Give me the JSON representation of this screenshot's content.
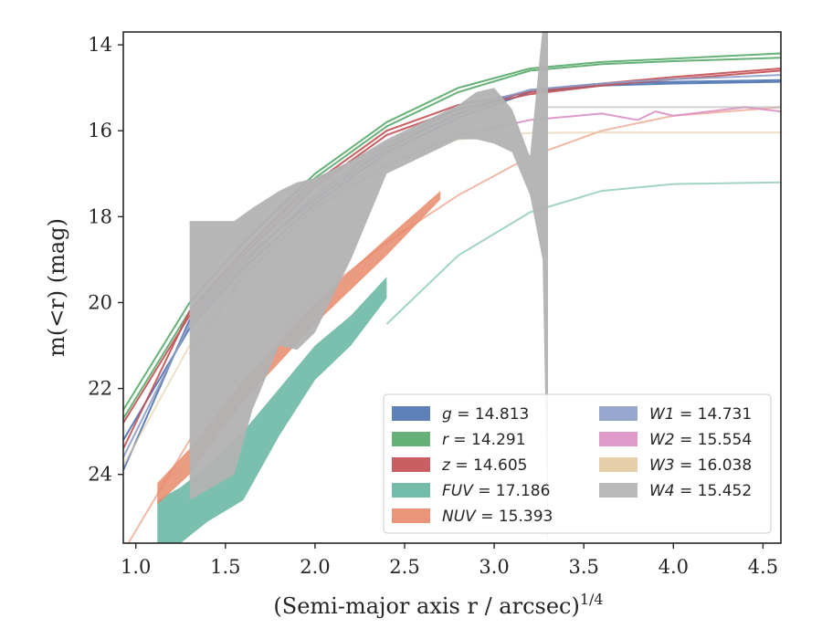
{
  "chart_data": {
    "type": "line",
    "xlabel": "(Semi-major axis r / arcsec)",
    "xlabel_sup": "1/4",
    "ylabel": "m(<r) (mag)",
    "xlim": [
      0.93,
      4.6
    ],
    "ylim": [
      25.6,
      13.7
    ],
    "y_inverted": true,
    "x_ticks": [
      1.0,
      1.5,
      2.0,
      2.5,
      3.0,
      3.5,
      4.0,
      4.5
    ],
    "x_tick_labels": [
      "1.0",
      "1.5",
      "2.0",
      "2.5",
      "3.0",
      "3.5",
      "4.0",
      "4.5"
    ],
    "y_ticks": [
      14,
      16,
      18,
      20,
      22,
      24
    ],
    "y_tick_labels": [
      "14",
      "16",
      "18",
      "20",
      "22",
      "24"
    ],
    "grid": false,
    "legend_position": "lower-right",
    "series": [
      {
        "name": "g",
        "legend_value": "14.813",
        "color": "#4c72b0",
        "band": false,
        "profiles": [
          {
            "x": [
              0.93,
              1.3,
              1.6,
              2.0,
              2.4,
              2.8,
              3.2,
              3.6,
              4.0,
              4.6
            ],
            "y": [
              23.9,
              20.4,
              19.0,
              17.6,
              16.4,
              15.6,
              15.05,
              14.9,
              14.86,
              14.82
            ]
          },
          {
            "x": [
              0.93,
              1.3,
              1.6,
              2.0,
              2.4,
              2.8,
              3.2,
              3.6,
              4.0,
              4.6
            ],
            "y": [
              23.2,
              20.6,
              19.2,
              17.7,
              16.5,
              15.7,
              15.1,
              14.95,
              14.9,
              14.86
            ]
          }
        ]
      },
      {
        "name": "r",
        "legend_value": "14.291",
        "color": "#55a868",
        "band": false,
        "profiles": [
          {
            "x": [
              0.93,
              1.3,
              1.6,
              2.0,
              2.4,
              2.8,
              3.2,
              3.6,
              4.0,
              4.6
            ],
            "y": [
              22.5,
              20.0,
              18.6,
              17.0,
              15.8,
              15.0,
              14.55,
              14.4,
              14.32,
              14.2
            ]
          },
          {
            "x": [
              0.93,
              1.3,
              1.6,
              2.0,
              2.4,
              2.8,
              3.2,
              3.6,
              4.0,
              4.6
            ],
            "y": [
              22.7,
              20.2,
              18.8,
              17.1,
              15.9,
              15.1,
              14.6,
              14.45,
              14.38,
              14.3
            ]
          }
        ]
      },
      {
        "name": "z",
        "legend_value": "14.605",
        "color": "#c44e52",
        "band": false,
        "profiles": [
          {
            "x": [
              0.93,
              1.3,
              1.6,
              2.0,
              2.4,
              2.8,
              3.2,
              3.6,
              4.0,
              4.6
            ],
            "y": [
              23.4,
              20.2,
              18.8,
              17.2,
              16.0,
              15.4,
              15.1,
              14.9,
              14.75,
              14.55
            ]
          },
          {
            "x": [
              0.93,
              1.3,
              1.6,
              2.0,
              2.4,
              2.8,
              3.2,
              3.6,
              4.0,
              4.6
            ],
            "y": [
              22.8,
              20.3,
              18.9,
              17.3,
              16.1,
              15.5,
              15.15,
              14.95,
              14.8,
              14.6
            ]
          }
        ]
      },
      {
        "name": "FUV",
        "legend_value": "17.186",
        "color": "#64b5a0",
        "band": true,
        "profiles": [
          {
            "x": [
              1.12,
              1.25,
              1.4,
              1.6,
              1.8,
              2.0,
              2.2,
              2.4
            ],
            "lo": [
              24.6,
              24.3,
              23.8,
              23.0,
              22.0,
              21.0,
              20.3,
              19.4
            ],
            "hi": [
              25.6,
              25.6,
              25.1,
              24.6,
              23.1,
              21.8,
              21.0,
              19.9
            ]
          },
          {
            "x": [
              2.4,
              2.8,
              3.2,
              3.6,
              4.0,
              4.6
            ],
            "y": [
              20.5,
              18.9,
              17.9,
              17.4,
              17.24,
              17.2
            ]
          }
        ]
      },
      {
        "name": "NUV",
        "legend_value": "15.393",
        "color": "#e8896a",
        "band": true,
        "profiles": [
          {
            "x": [
              1.12,
              1.3,
              1.6,
              2.0,
              2.4,
              2.7
            ],
            "lo": [
              24.2,
              23.4,
              21.8,
              20.0,
              18.5,
              17.4
            ],
            "hi": [
              24.7,
              24.0,
              22.3,
              20.5,
              18.9,
              17.6
            ]
          },
          {
            "x": [
              0.93,
              1.3,
              1.6,
              2.0,
              2.4,
              2.8,
              3.2,
              3.6,
              4.0,
              4.6
            ],
            "y": [
              25.8,
              23.2,
              21.6,
              19.9,
              18.6,
              17.5,
              16.6,
              16.0,
              15.65,
              15.45
            ]
          }
        ]
      },
      {
        "name": "W1",
        "legend_value": "14.731",
        "color": "#8c9dc8",
        "band": false,
        "profiles": [
          {
            "x": [
              0.93,
              1.3,
              1.6,
              2.0,
              2.4,
              2.8,
              3.2,
              3.6,
              4.0,
              4.6
            ],
            "y": [
              23.6,
              20.5,
              19.1,
              17.5,
              16.3,
              15.5,
              15.05,
              14.9,
              14.8,
              14.7
            ]
          }
        ]
      },
      {
        "name": "W2",
        "legend_value": "15.554",
        "color": "#dc8fc6",
        "band": false,
        "profiles": [
          {
            "x": [
              1.3,
              1.6,
              2.0,
              2.4,
              2.8,
              3.2,
              3.6,
              3.8,
              3.9,
              4.0,
              4.2,
              4.4,
              4.6
            ],
            "y": [
              21.2,
              19.4,
              17.8,
              16.8,
              16.1,
              15.75,
              15.6,
              15.75,
              15.55,
              15.65,
              15.55,
              15.45,
              15.55
            ]
          }
        ]
      },
      {
        "name": "W3",
        "legend_value": "16.038",
        "color": "#e3c9a0",
        "band": false,
        "profiles": [
          {
            "x": [
              0.93,
              1.3,
              1.6,
              2.0,
              2.4,
              2.8,
              3.2,
              3.6,
              4.0,
              4.6
            ],
            "y": [
              23.8,
              21.0,
              19.3,
              17.8,
              16.6,
              16.2,
              16.05,
              16.04,
              16.04,
              16.04
            ]
          }
        ]
      },
      {
        "name": "W4",
        "legend_value": "15.452",
        "color": "#b2b2b2",
        "band": true,
        "profiles": [
          {
            "x": [
              1.3,
              1.55,
              1.65,
              1.8,
              1.9,
              2.0,
              2.2,
              2.4,
              2.6,
              2.8,
              2.9,
              3.0,
              3.1,
              3.2,
              3.27,
              3.3
            ],
            "lo": [
              18.1,
              18.1,
              17.8,
              17.4,
              17.2,
              17.1,
              16.7,
              16.2,
              15.8,
              15.4,
              15.1,
              15.0,
              15.5,
              16.6,
              13.6,
              13.6
            ],
            "hi": [
              24.6,
              24.0,
              22.5,
              21.0,
              21.1,
              20.7,
              19.0,
              17.0,
              16.6,
              16.2,
              16.2,
              16.3,
              16.5,
              17.5,
              19.0,
              25.6
            ]
          },
          {
            "x": [
              3.3,
              3.6,
              4.0,
              4.6
            ],
            "y": [
              15.45,
              15.45,
              15.45,
              15.45
            ]
          }
        ]
      }
    ]
  }
}
